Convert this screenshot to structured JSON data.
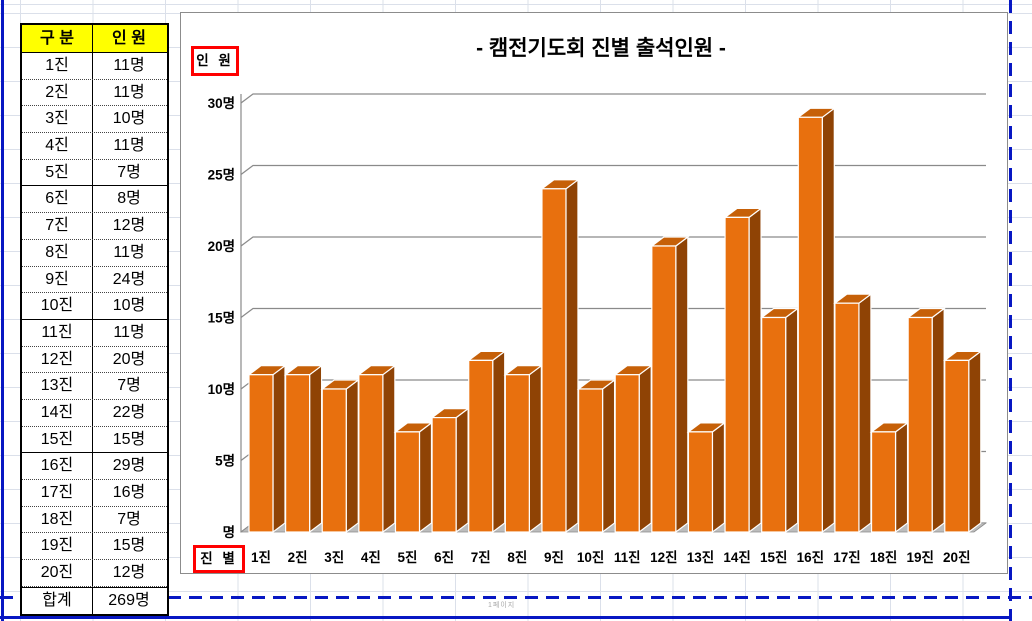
{
  "page": {
    "watermark": "1페이지"
  },
  "table": {
    "headers": [
      "구  분",
      "인  원"
    ],
    "rows": [
      [
        "1진",
        "11명"
      ],
      [
        "2진",
        "11명"
      ],
      [
        "3진",
        "10명"
      ],
      [
        "4진",
        "11명"
      ],
      [
        "5진",
        "7명"
      ],
      [
        "6진",
        "8명"
      ],
      [
        "7진",
        "12명"
      ],
      [
        "8진",
        "11명"
      ],
      [
        "9진",
        "24명"
      ],
      [
        "10진",
        "10명"
      ],
      [
        "11진",
        "11명"
      ],
      [
        "12진",
        "20명"
      ],
      [
        "13진",
        "7명"
      ],
      [
        "14진",
        "22명"
      ],
      [
        "15진",
        "15명"
      ],
      [
        "16진",
        "29명"
      ],
      [
        "17진",
        "16명"
      ],
      [
        "18진",
        "7명"
      ],
      [
        "19진",
        "15명"
      ],
      [
        "20진",
        "12명"
      ]
    ],
    "total_row": [
      "합계",
      "269명"
    ],
    "header_bg": "#FFFF00"
  },
  "chart_data": {
    "type": "bar",
    "style": "3d-column",
    "title": "- 캠전기도회 진별 출석인원 -",
    "xlabel": "진 별",
    "ylabel": "인 원",
    "categories": [
      "1진",
      "2진",
      "3진",
      "4진",
      "5진",
      "6진",
      "7진",
      "8진",
      "9진",
      "10진",
      "11진",
      "12진",
      "13진",
      "14진",
      "15진",
      "16진",
      "17진",
      "18진",
      "19진",
      "20진"
    ],
    "values": [
      11,
      11,
      10,
      11,
      7,
      8,
      12,
      11,
      24,
      10,
      11,
      20,
      7,
      22,
      15,
      29,
      16,
      7,
      15,
      12
    ],
    "y_ticks": [
      "명",
      "5명",
      "10명",
      "15명",
      "20명",
      "25명",
      "30명"
    ],
    "ylim": [
      0,
      30
    ],
    "grid": true,
    "legend": "none",
    "colors": {
      "bar_front": "#E8700E",
      "bar_side": "#8F4305",
      "bar_top": "#C66008",
      "gridline": "#8a8a8a",
      "floor": "#bcbcbc",
      "label_box_border": "#FF0000"
    }
  }
}
